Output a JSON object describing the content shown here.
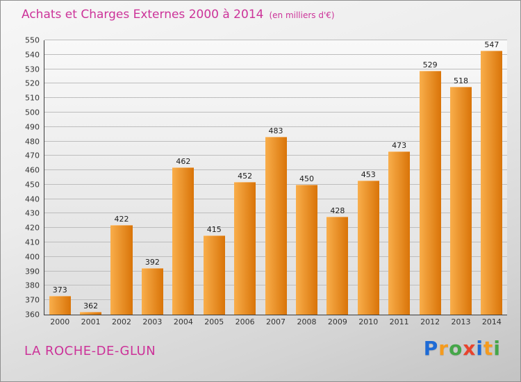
{
  "header": {
    "title": "Achats et Charges Externes 2000 à 2014",
    "subtitle": "(en milliers d'€)"
  },
  "chart_data": {
    "type": "bar",
    "title": "Achats et Charges Externes 2000 à 2014 (en milliers d'€)",
    "categories": [
      "2000",
      "2001",
      "2002",
      "2003",
      "2004",
      "2005",
      "2006",
      "2007",
      "2008",
      "2009",
      "2010",
      "2011",
      "2012",
      "2013",
      "2014"
    ],
    "values": [
      373,
      362,
      422,
      392,
      462,
      415,
      452,
      483,
      450,
      428,
      453,
      473,
      529,
      518,
      547
    ],
    "xlabel": "",
    "ylabel": "",
    "ylim": [
      360,
      550
    ],
    "ytick_step": 10,
    "grid": "horizontal",
    "legend": "none",
    "bar_color_start": "#f9ae4b",
    "bar_color_end": "#d97408",
    "title_color": "#cc3399"
  },
  "footer": {
    "place": "LA ROCHE-DE-GLUN",
    "logo_letters": [
      {
        "ch": "P",
        "color": "#1e6bd6"
      },
      {
        "ch": "r",
        "color": "#f59b1e"
      },
      {
        "ch": "o",
        "color": "#45a649"
      },
      {
        "ch": "x",
        "color": "#e8432d"
      },
      {
        "ch": "i",
        "color": "#1e6bd6"
      },
      {
        "ch": "t",
        "color": "#f59b1e"
      },
      {
        "ch": "i",
        "color": "#45a649"
      }
    ]
  }
}
